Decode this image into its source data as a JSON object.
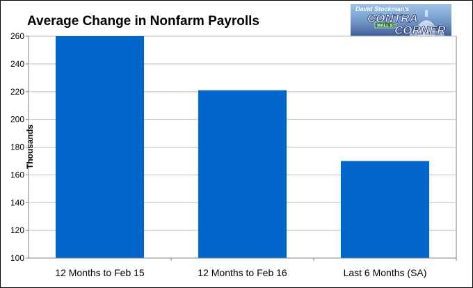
{
  "chart_data": {
    "type": "bar",
    "title": "Average Change in Nonfarm Payrolls",
    "ylabel": "Thousands",
    "xlabel": "",
    "categories": [
      "12 Months to Feb 15",
      "12 Months to Feb 16",
      "Last 6 Months (SA)"
    ],
    "values": [
      260,
      221,
      170
    ],
    "ylim": [
      100,
      260
    ],
    "yticks": [
      "100",
      "120",
      "140",
      "160",
      "180",
      "200",
      "220",
      "240",
      "260"
    ],
    "grid": true,
    "legend": "none",
    "bar_color": "#0066cc",
    "plot_background": "#ffffff",
    "grid_color": "#c0c0c0"
  },
  "logo": {
    "line1": "David Stockman's",
    "line2": "CONTRA",
    "sign": "WALL ST",
    "line3": "CORNER"
  }
}
